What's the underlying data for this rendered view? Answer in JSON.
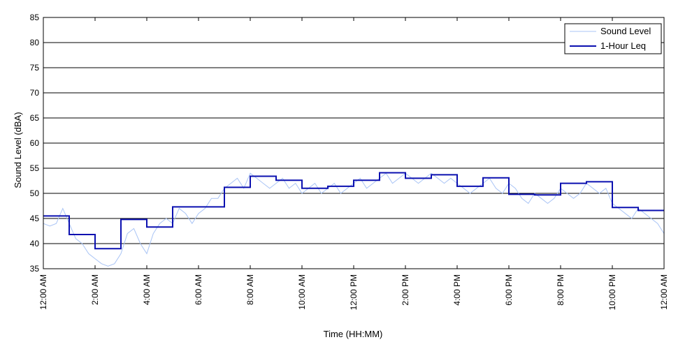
{
  "chart_data": {
    "type": "line",
    "title": "",
    "xlabel": "Time (HH:MM)",
    "ylabel": "Sound Level (dBA)",
    "ylim": [
      35,
      85
    ],
    "xlim_hours": [
      0,
      24
    ],
    "grid": "horizontal",
    "legend_position": "top-right",
    "y_ticks": [
      35,
      40,
      45,
      50,
      55,
      60,
      65,
      70,
      75,
      80,
      85
    ],
    "x_ticks": [
      {
        "hour": 0,
        "label": "12:00 AM"
      },
      {
        "hour": 2,
        "label": "2:00 AM"
      },
      {
        "hour": 4,
        "label": "4:00 AM"
      },
      {
        "hour": 6,
        "label": "6:00 AM"
      },
      {
        "hour": 8,
        "label": "8:00 AM"
      },
      {
        "hour": 10,
        "label": "10:00 AM"
      },
      {
        "hour": 12,
        "label": "12:00 PM"
      },
      {
        "hour": 14,
        "label": "2:00 PM"
      },
      {
        "hour": 16,
        "label": "4:00 PM"
      },
      {
        "hour": 18,
        "label": "6:00 PM"
      },
      {
        "hour": 20,
        "label": "8:00 PM"
      },
      {
        "hour": 22,
        "label": "10:00 PM"
      },
      {
        "hour": 24,
        "label": "12:00 AM"
      }
    ],
    "series": [
      {
        "name": "Sound Level",
        "color": "#a9c4f5",
        "kind": "line",
        "x": [
          0,
          0.25,
          0.5,
          0.75,
          1,
          1.25,
          1.5,
          1.75,
          2,
          2.25,
          2.5,
          2.75,
          3,
          3.25,
          3.5,
          3.75,
          4,
          4.25,
          4.5,
          4.75,
          5,
          5.25,
          5.5,
          5.75,
          6,
          6.25,
          6.5,
          6.75,
          7,
          7.25,
          7.5,
          7.75,
          8,
          8.25,
          8.5,
          8.75,
          9,
          9.25,
          9.5,
          9.75,
          10,
          10.25,
          10.5,
          10.75,
          11,
          11.25,
          11.5,
          11.75,
          12,
          12.25,
          12.5,
          12.75,
          13,
          13.25,
          13.5,
          13.75,
          14,
          14.25,
          14.5,
          14.75,
          15,
          15.25,
          15.5,
          15.75,
          16,
          16.25,
          16.5,
          16.75,
          17,
          17.25,
          17.5,
          17.75,
          18,
          18.25,
          18.5,
          18.75,
          19,
          19.25,
          19.5,
          19.75,
          20,
          20.25,
          20.5,
          20.75,
          21,
          21.25,
          21.5,
          21.75,
          22,
          22.25,
          22.5,
          22.75,
          23,
          23.25,
          23.5,
          23.75,
          24
        ],
        "y": [
          44,
          43.5,
          44,
          47,
          44,
          41,
          40,
          38,
          37,
          36,
          35.5,
          36,
          38,
          42,
          43,
          40,
          38,
          42,
          44,
          45,
          44,
          47,
          46,
          44,
          46,
          47,
          49,
          49,
          51,
          52,
          53,
          51,
          54,
          53,
          52,
          51,
          52,
          53,
          51,
          52,
          50,
          51,
          52,
          50,
          51,
          52,
          50,
          51,
          52,
          53,
          51,
          52,
          53,
          54,
          52,
          53,
          54,
          53,
          52,
          53,
          54,
          53,
          52,
          53,
          52,
          51,
          50,
          51,
          52,
          53,
          51,
          50,
          52,
          51,
          49,
          48,
          50,
          49,
          48,
          49,
          51,
          50,
          49,
          50,
          52,
          51,
          50,
          51,
          48,
          47,
          46,
          45,
          47,
          46,
          45,
          44,
          42
        ]
      },
      {
        "name": "1-Hour Leq",
        "color": "#0b10b0",
        "kind": "step",
        "hours": [
          0,
          1,
          2,
          3,
          4,
          5,
          6,
          7,
          8,
          9,
          10,
          11,
          12,
          13,
          14,
          15,
          16,
          17,
          18,
          19,
          20,
          21,
          22,
          23
        ],
        "values": [
          45.5,
          41.8,
          39.0,
          44.8,
          43.3,
          47.3,
          47.3,
          51.2,
          53.4,
          52.6,
          51.0,
          51.4,
          52.6,
          54.1,
          53.0,
          53.7,
          51.4,
          53.1,
          49.8,
          49.7,
          52.0,
          52.3,
          47.2,
          46.6
        ]
      }
    ]
  }
}
